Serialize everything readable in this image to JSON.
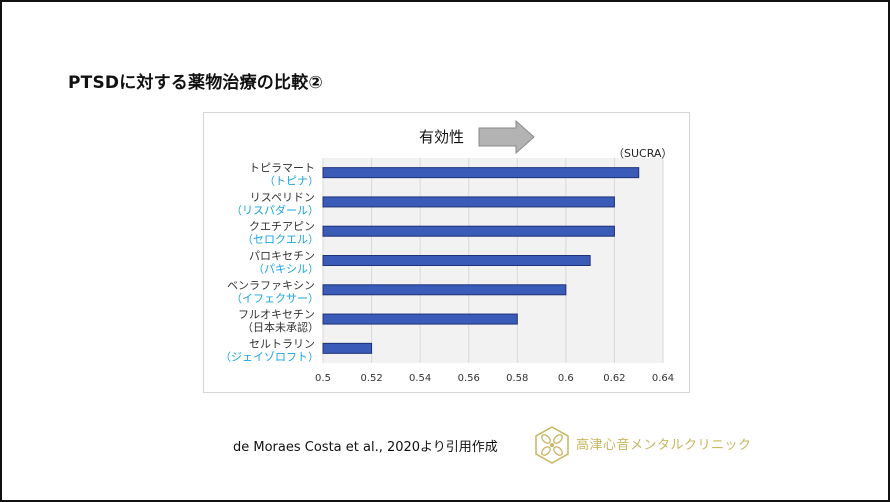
{
  "slide": {
    "title": "PTSDに対する薬物治療の比較②",
    "citation": "de Moraes Costa et al., 2020より引用作成",
    "clinic_name": "高津心音メンタルクリニック"
  },
  "colors": {
    "bar_fill": "#3b5bb8",
    "bar_stroke": "#1f3278",
    "brand_label": "#1aa5e0",
    "arrow_fill": "#b3b3b3",
    "grid": "#d9d9d9",
    "plot_bg": "#f2f2f2",
    "logo": "#c9b560"
  },
  "chart_data": {
    "type": "bar",
    "orientation": "horizontal",
    "direction_label": "有効性",
    "unit_label": "（SUCRA）",
    "categories": [
      "トピラマート",
      "リスペリドン",
      "クエチアピン",
      "パロキセチン",
      "ベンラファキシン",
      "フルオキセチン",
      "セルトラリン"
    ],
    "brand_names": [
      "（トピナ）",
      "（リスパダール）",
      "（セロクエル）",
      "（パキシル）",
      "（イフェクサー）",
      "（日本未承認）",
      "（ジェイゾロフト）"
    ],
    "brand_name_colored": [
      true,
      true,
      true,
      true,
      true,
      false,
      true
    ],
    "values": [
      0.63,
      0.62,
      0.62,
      0.61,
      0.6,
      0.58,
      0.52
    ],
    "xlim": [
      0.5,
      0.64
    ],
    "x_ticks": [
      "0.5",
      "0.52",
      "0.54",
      "0.56",
      "0.58",
      "0.6",
      "0.62",
      "0.64"
    ],
    "grid": true
  }
}
